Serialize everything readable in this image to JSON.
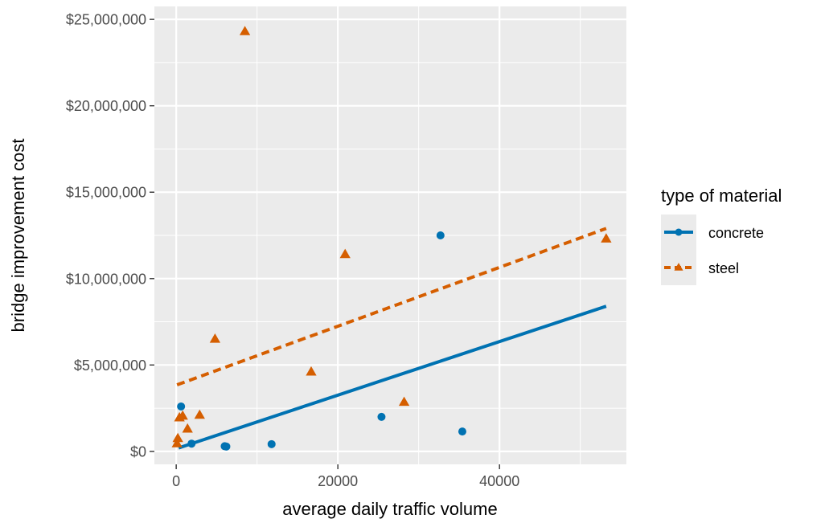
{
  "chart_data": {
    "type": "scatter",
    "xlabel": "average daily traffic volume",
    "ylabel": "bridge improvement cost",
    "xlim": [
      -2700,
      55700
    ],
    "ylim": [
      -750000,
      25750000
    ],
    "x_ticks": [
      0,
      20000,
      40000
    ],
    "x_tick_labels": [
      "0",
      "20000",
      "40000"
    ],
    "y_ticks": [
      0,
      5000000,
      10000000,
      15000000,
      20000000,
      25000000
    ],
    "y_tick_labels": [
      "$0",
      "$5,000,000",
      "$10,000,000",
      "$15,000,000",
      "$20,000,000",
      "$25,000,000"
    ],
    "grid": true,
    "legend_title": "type of material",
    "legend_position": "right",
    "series": [
      {
        "name": "concrete",
        "color": "#0072B2",
        "marker": "circle",
        "line_style": "solid",
        "points": [
          [
            600,
            2600000
          ],
          [
            1900,
            450000
          ],
          [
            6000,
            300000
          ],
          [
            6200,
            280000
          ],
          [
            11800,
            420000
          ],
          [
            25400,
            2000000
          ],
          [
            32700,
            12500000
          ],
          [
            35400,
            1150000
          ]
        ],
        "fit_line": [
          [
            300,
            200000
          ],
          [
            53200,
            8400000
          ]
        ]
      },
      {
        "name": "steel",
        "color": "#D55E00",
        "marker": "triangle",
        "line_style": "dashed",
        "points": [
          [
            100,
            450000
          ],
          [
            200,
            750000
          ],
          [
            400,
            1950000
          ],
          [
            800,
            2050000
          ],
          [
            1400,
            1300000
          ],
          [
            2900,
            2100000
          ],
          [
            4800,
            6500000
          ],
          [
            8500,
            24300000
          ],
          [
            16700,
            4600000
          ],
          [
            20900,
            11400000
          ],
          [
            28200,
            2850000
          ],
          [
            53200,
            12300000
          ]
        ],
        "fit_line": [
          [
            100,
            3850000
          ],
          [
            53200,
            12900000
          ]
        ]
      }
    ]
  }
}
